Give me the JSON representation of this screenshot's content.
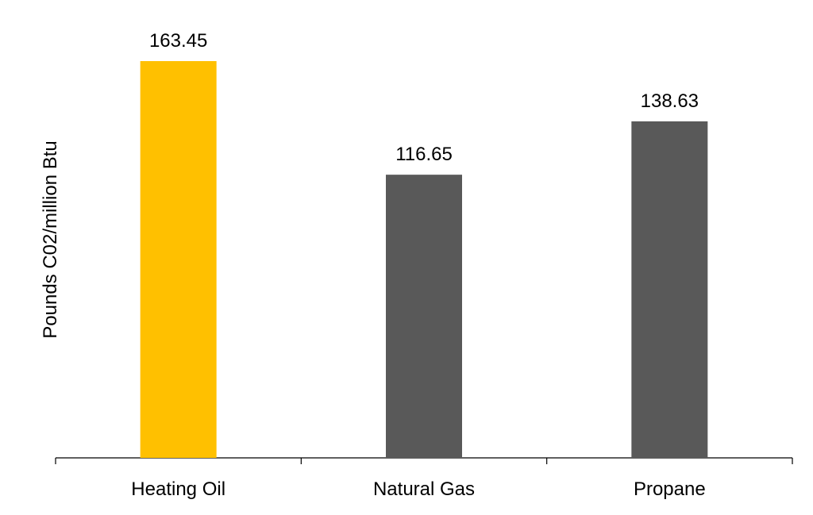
{
  "chart_data": {
    "type": "bar",
    "title": "",
    "xlabel": "",
    "ylabel": "Pounds C02/million Btu",
    "categories": [
      "Heating Oil",
      "Natural Gas",
      "Propane"
    ],
    "values": [
      163.45,
      116.65,
      138.63
    ],
    "data_labels": [
      "163.45",
      "116.65",
      "138.63"
    ],
    "bar_colors": [
      "#FFC000",
      "#595959",
      "#595959"
    ],
    "ylim": [
      0,
      163.45
    ],
    "grid": false,
    "legend": "none"
  }
}
